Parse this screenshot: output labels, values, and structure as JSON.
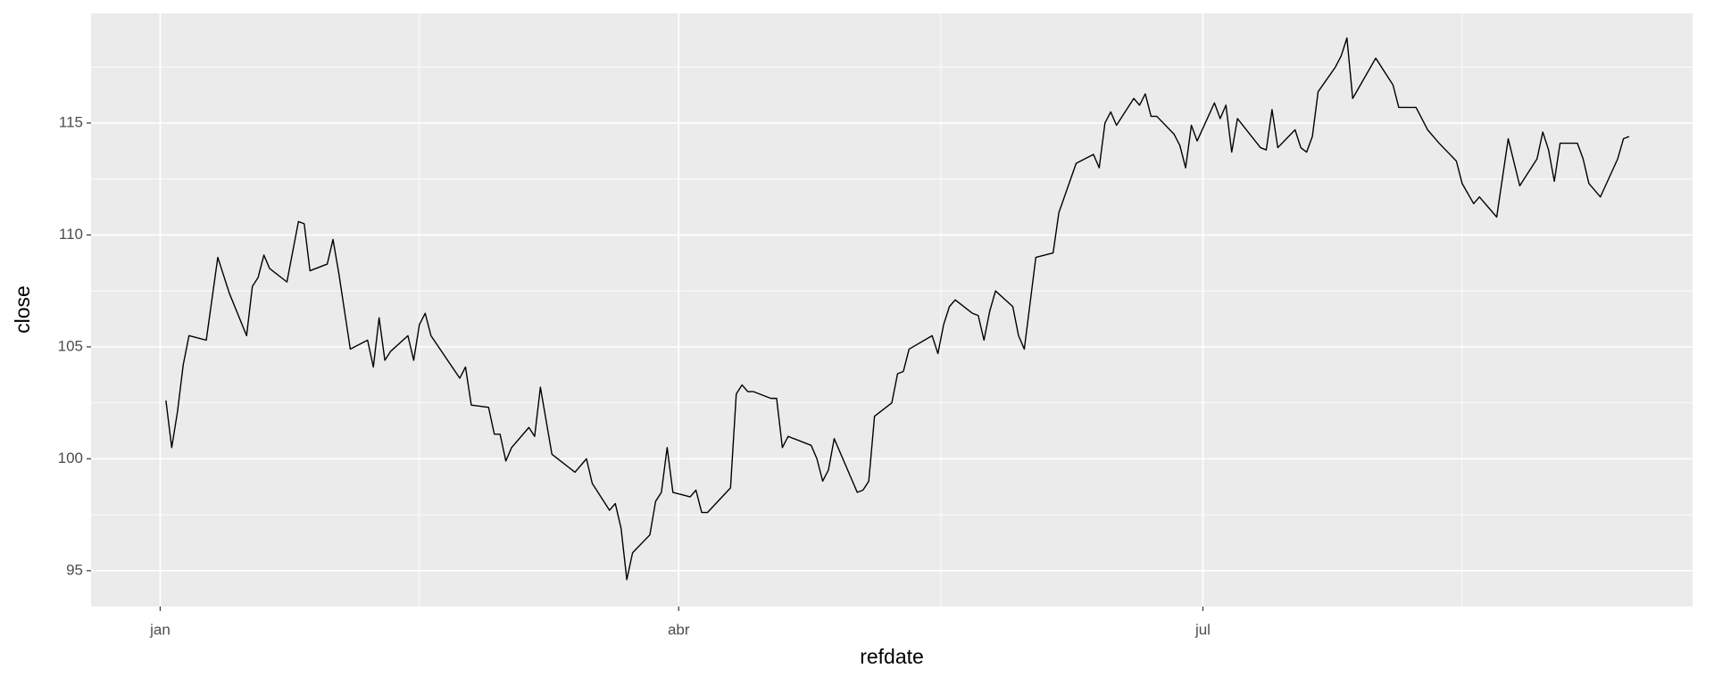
{
  "chart_data": {
    "type": "line",
    "x_label": "refdate",
    "y_label": "close",
    "x": [
      1,
      2,
      3,
      4,
      5,
      8,
      10,
      12,
      15,
      16,
      17,
      18,
      19,
      22,
      24,
      25,
      26,
      29,
      30,
      31,
      33,
      36,
      37,
      38,
      39,
      40,
      43,
      44,
      45,
      46,
      47,
      52,
      53,
      54,
      57,
      58,
      59,
      60,
      61,
      64,
      65,
      66,
      68,
      72,
      74,
      75,
      78,
      79,
      80,
      81,
      82,
      85,
      86,
      87,
      88,
      89,
      92,
      93,
      94,
      95,
      99,
      100,
      101,
      102,
      103,
      106,
      107,
      108,
      109,
      113,
      114,
      115,
      116,
      117,
      121,
      122,
      123,
      124,
      127,
      128,
      129,
      130,
      134,
      135,
      136,
      137,
      138,
      141,
      142,
      143,
      144,
      145,
      148,
      149,
      150,
      152,
      155,
      156,
      159,
      162,
      163,
      164,
      165,
      166,
      169,
      170,
      171,
      172,
      173,
      176,
      177,
      178,
      179,
      180,
      183,
      184,
      185,
      186,
      187,
      191,
      192,
      193,
      194,
      197,
      198,
      199,
      200,
      201,
      204,
      205,
      206,
      207,
      211,
      213,
      214,
      215,
      218,
      219,
      220,
      222,
      225,
      226,
      228,
      229,
      232,
      234,
      236,
      239,
      240,
      241,
      242,
      243,
      246,
      247,
      248,
      250,
      253,
      254,
      255
    ],
    "values": [
      102.6,
      100.5,
      102.1,
      104.2,
      105.5,
      105.3,
      109.0,
      107.4,
      105.5,
      107.7,
      108.1,
      109.1,
      108.5,
      107.9,
      110.6,
      110.5,
      108.4,
      108.7,
      109.8,
      108.3,
      104.9,
      105.3,
      104.1,
      106.3,
      104.4,
      104.8,
      105.5,
      104.4,
      106.0,
      106.5,
      105.5,
      103.6,
      104.1,
      102.4,
      102.3,
      101.1,
      101.1,
      99.9,
      100.5,
      101.4,
      101.0,
      103.2,
      100.2,
      99.4,
      100.0,
      98.9,
      97.7,
      98.0,
      96.9,
      94.6,
      95.8,
      96.6,
      98.1,
      98.5,
      100.5,
      98.5,
      98.3,
      98.6,
      97.6,
      97.6,
      98.7,
      102.9,
      103.3,
      103.0,
      103.0,
      102.7,
      102.7,
      100.5,
      101.0,
      100.6,
      100.0,
      99.0,
      99.5,
      100.9,
      98.5,
      98.6,
      99.0,
      101.9,
      102.5,
      103.8,
      103.9,
      104.9,
      105.5,
      104.7,
      106.0,
      106.8,
      107.1,
      106.5,
      106.4,
      105.3,
      106.6,
      107.5,
      106.8,
      105.5,
      104.9,
      109.0,
      109.2,
      111.0,
      113.2,
      113.6,
      113.0,
      115.0,
      115.5,
      114.9,
      116.1,
      115.8,
      116.3,
      115.3,
      115.3,
      114.5,
      114.0,
      113.0,
      114.9,
      114.2,
      115.9,
      115.2,
      115.8,
      113.7,
      115.2,
      113.9,
      113.8,
      115.6,
      113.9,
      114.7,
      113.9,
      113.7,
      114.4,
      116.4,
      117.5,
      118.0,
      118.8,
      116.1,
      117.9,
      117.1,
      116.7,
      115.7,
      115.7,
      115.2,
      114.7,
      114.1,
      113.3,
      112.3,
      111.4,
      111.7,
      110.8,
      114.3,
      112.2,
      113.4,
      114.6,
      113.8,
      112.4,
      114.1,
      114.1,
      113.4,
      112.3,
      111.7,
      113.4,
      114.3,
      114.4
    ],
    "color": "#000000",
    "xlim": [
      -12,
      266
    ],
    "xticks": [
      {
        "value": 0,
        "label": "jan"
      },
      {
        "value": 90,
        "label": "abr"
      },
      {
        "value": 181,
        "label": "jul"
      }
    ],
    "ylim": [
      93.4,
      119.9
    ],
    "yticks": [
      95,
      100,
      105,
      110,
      115
    ],
    "grid": true
  }
}
